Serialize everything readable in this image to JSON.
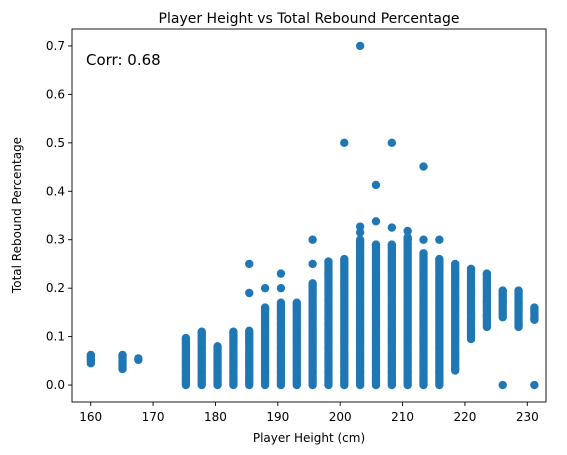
{
  "chart_data": {
    "type": "scatter",
    "title": "Player Height vs Total Rebound Percentage",
    "xlabel": "Player Height (cm)",
    "ylabel": "Total Rebound Percentage",
    "xlim": [
      157,
      233
    ],
    "ylim": [
      -0.035,
      0.735
    ],
    "x_ticks": [
      160,
      170,
      180,
      190,
      200,
      210,
      220,
      230
    ],
    "y_ticks": [
      0.0,
      0.1,
      0.2,
      0.3,
      0.4,
      0.5,
      0.6,
      0.7
    ],
    "x_tick_labels": [
      "160",
      "170",
      "180",
      "190",
      "200",
      "210",
      "220",
      "230"
    ],
    "y_tick_labels": [
      "0.0",
      "0.1",
      "0.2",
      "0.3",
      "0.4",
      "0.5",
      "0.6",
      "0.7"
    ],
    "annotation": "Corr: 0.68",
    "annotation_position": "top-left",
    "grid": false,
    "marker_color": "#1f77b4",
    "columns": [
      {
        "x": 160.02,
        "min": 0.045,
        "max": 0.062
      },
      {
        "x": 165.1,
        "min": 0.033,
        "max": 0.062
      },
      {
        "x": 167.64,
        "min": 0.052,
        "max": 0.055
      },
      {
        "x": 175.26,
        "min": 0.0,
        "max": 0.097
      },
      {
        "x": 177.8,
        "min": 0.0,
        "max": 0.11
      },
      {
        "x": 180.34,
        "min": 0.0,
        "max": 0.08
      },
      {
        "x": 182.88,
        "min": 0.0,
        "max": 0.11
      },
      {
        "x": 185.42,
        "min": 0.0,
        "max": 0.112
      },
      {
        "x": 187.96,
        "min": 0.0,
        "max": 0.16
      },
      {
        "x": 190.5,
        "min": 0.0,
        "max": 0.17
      },
      {
        "x": 193.04,
        "min": 0.0,
        "max": 0.17
      },
      {
        "x": 195.58,
        "min": 0.0,
        "max": 0.21
      },
      {
        "x": 198.12,
        "min": 0.0,
        "max": 0.255
      },
      {
        "x": 200.66,
        "min": 0.0,
        "max": 0.26
      },
      {
        "x": 203.2,
        "min": 0.0,
        "max": 0.3
      },
      {
        "x": 205.74,
        "min": 0.0,
        "max": 0.29
      },
      {
        "x": 208.28,
        "min": 0.0,
        "max": 0.29
      },
      {
        "x": 210.82,
        "min": 0.0,
        "max": 0.305
      },
      {
        "x": 213.36,
        "min": 0.0,
        "max": 0.272
      },
      {
        "x": 215.9,
        "min": 0.0,
        "max": 0.26
      },
      {
        "x": 218.44,
        "min": 0.03,
        "max": 0.25
      },
      {
        "x": 220.98,
        "min": 0.095,
        "max": 0.24
      },
      {
        "x": 223.52,
        "min": 0.12,
        "max": 0.23
      },
      {
        "x": 226.06,
        "min": 0.14,
        "max": 0.195
      },
      {
        "x": 228.6,
        "min": 0.12,
        "max": 0.195
      },
      {
        "x": 231.14,
        "min": 0.135,
        "max": 0.16
      }
    ],
    "points": [
      {
        "x": 203.2,
        "y": 0.7
      },
      {
        "x": 200.66,
        "y": 0.5
      },
      {
        "x": 208.28,
        "y": 0.5
      },
      {
        "x": 213.36,
        "y": 0.451
      },
      {
        "x": 205.74,
        "y": 0.413
      },
      {
        "x": 205.74,
        "y": 0.338
      },
      {
        "x": 203.2,
        "y": 0.327
      },
      {
        "x": 203.2,
        "y": 0.315
      },
      {
        "x": 208.28,
        "y": 0.325
      },
      {
        "x": 210.82,
        "y": 0.318
      },
      {
        "x": 213.36,
        "y": 0.3
      },
      {
        "x": 215.9,
        "y": 0.3
      },
      {
        "x": 195.58,
        "y": 0.3
      },
      {
        "x": 210.82,
        "y": 0.3
      },
      {
        "x": 190.5,
        "y": 0.23
      },
      {
        "x": 185.42,
        "y": 0.25
      },
      {
        "x": 185.42,
        "y": 0.19
      },
      {
        "x": 187.96,
        "y": 0.2
      },
      {
        "x": 195.58,
        "y": 0.25
      },
      {
        "x": 198.12,
        "y": 0.23
      },
      {
        "x": 190.5,
        "y": 0.2
      },
      {
        "x": 187.96,
        "y": 0.158
      },
      {
        "x": 218.44,
        "y": 0.033
      },
      {
        "x": 226.06,
        "y": 0.0
      },
      {
        "x": 231.14,
        "y": 0.0
      },
      {
        "x": 226.06,
        "y": 0.173
      },
      {
        "x": 228.6,
        "y": 0.17
      },
      {
        "x": 223.52,
        "y": 0.173
      },
      {
        "x": 220.98,
        "y": 0.148
      },
      {
        "x": 223.52,
        "y": 0.143
      },
      {
        "x": 228.6,
        "y": 0.125
      },
      {
        "x": 231.14,
        "y": 0.135
      }
    ]
  }
}
